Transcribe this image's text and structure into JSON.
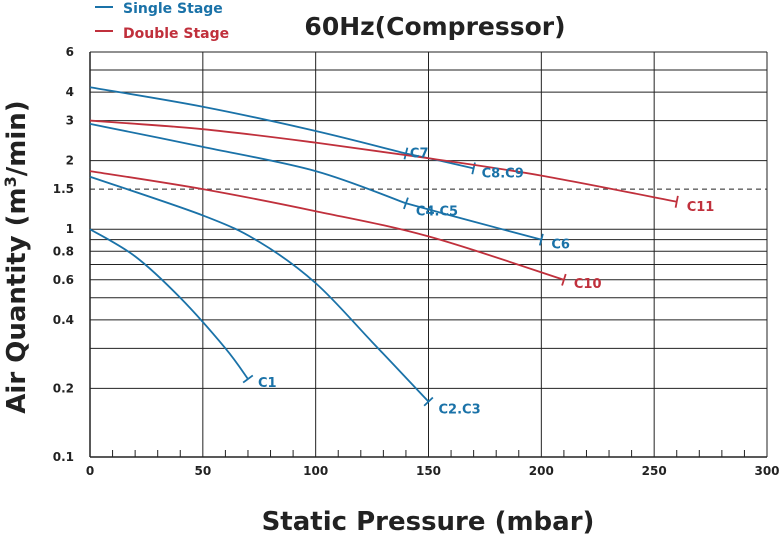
{
  "chart_data": {
    "type": "line",
    "title": "60Hz(Compressor)",
    "xlabel": "Static Pressure (mbar)",
    "ylabel_main": "Air Quantity (m",
    "ylabel_sup": "3",
    "ylabel_tail": "/min)",
    "x_scale": "linear",
    "y_scale": "log",
    "xlim": [
      0,
      300
    ],
    "ylim": [
      0.1,
      6
    ],
    "x_ticks": [
      0,
      50,
      100,
      150,
      200,
      250,
      300
    ],
    "y_ticks": [
      0.1,
      0.2,
      0.4,
      0.6,
      0.8,
      1,
      1.5,
      2,
      3,
      4,
      6
    ],
    "y_tick_labels": [
      "0.1",
      "0.2",
      "0.4",
      "0.6",
      "0.8",
      "1",
      "1.5",
      "2",
      "3",
      "4",
      "6"
    ],
    "y_gridlines": [
      0.1,
      0.2,
      0.3,
      0.4,
      0.5,
      0.6,
      0.7,
      0.8,
      0.9,
      1,
      2,
      3,
      4,
      5,
      6
    ],
    "dashed_reference_y": 1.5,
    "grid": true,
    "legend_position": "top-left",
    "legend": [
      {
        "label": "Single Stage",
        "color": "#1a72a8"
      },
      {
        "label": "Double Stage",
        "color": "#c0303c"
      }
    ],
    "colors": {
      "single": "#1a72a8",
      "double": "#c0303c",
      "grid": "#222222"
    },
    "series": [
      {
        "label": "C1",
        "group": "single",
        "points": [
          [
            0,
            1.0
          ],
          [
            20,
            0.76
          ],
          [
            40,
            0.5
          ],
          [
            60,
            0.3
          ],
          [
            70,
            0.22
          ]
        ]
      },
      {
        "label": "C2.C3",
        "group": "single",
        "points": [
          [
            0,
            1.7
          ],
          [
            50,
            1.15
          ],
          [
            75,
            0.88
          ],
          [
            100,
            0.58
          ],
          [
            125,
            0.32
          ],
          [
            150,
            0.175
          ]
        ]
      },
      {
        "label": "C4.C5",
        "group": "single",
        "points": [
          [
            0,
            2.9
          ],
          [
            50,
            2.3
          ],
          [
            100,
            1.8
          ],
          [
            140,
            1.3
          ]
        ]
      },
      {
        "label": "C6",
        "group": "single",
        "points": [
          [
            140,
            1.3
          ],
          [
            170,
            1.08
          ],
          [
            200,
            0.9
          ]
        ]
      },
      {
        "label": "C7",
        "group": "single",
        "points": [
          [
            0,
            4.2
          ],
          [
            50,
            3.45
          ],
          [
            100,
            2.7
          ],
          [
            140,
            2.15
          ]
        ]
      },
      {
        "label": "C8.C9",
        "group": "single",
        "points": [
          [
            140,
            2.15
          ],
          [
            155,
            2.0
          ],
          [
            170,
            1.85
          ]
        ]
      },
      {
        "label": "C10",
        "group": "double",
        "points": [
          [
            0,
            1.8
          ],
          [
            50,
            1.5
          ],
          [
            100,
            1.2
          ],
          [
            150,
            0.93
          ],
          [
            210,
            0.6
          ]
        ]
      },
      {
        "label": "C11",
        "group": "double",
        "points": [
          [
            0,
            3.0
          ],
          [
            50,
            2.75
          ],
          [
            100,
            2.4
          ],
          [
            150,
            2.05
          ],
          [
            200,
            1.72
          ],
          [
            260,
            1.32
          ]
        ]
      }
    ]
  }
}
